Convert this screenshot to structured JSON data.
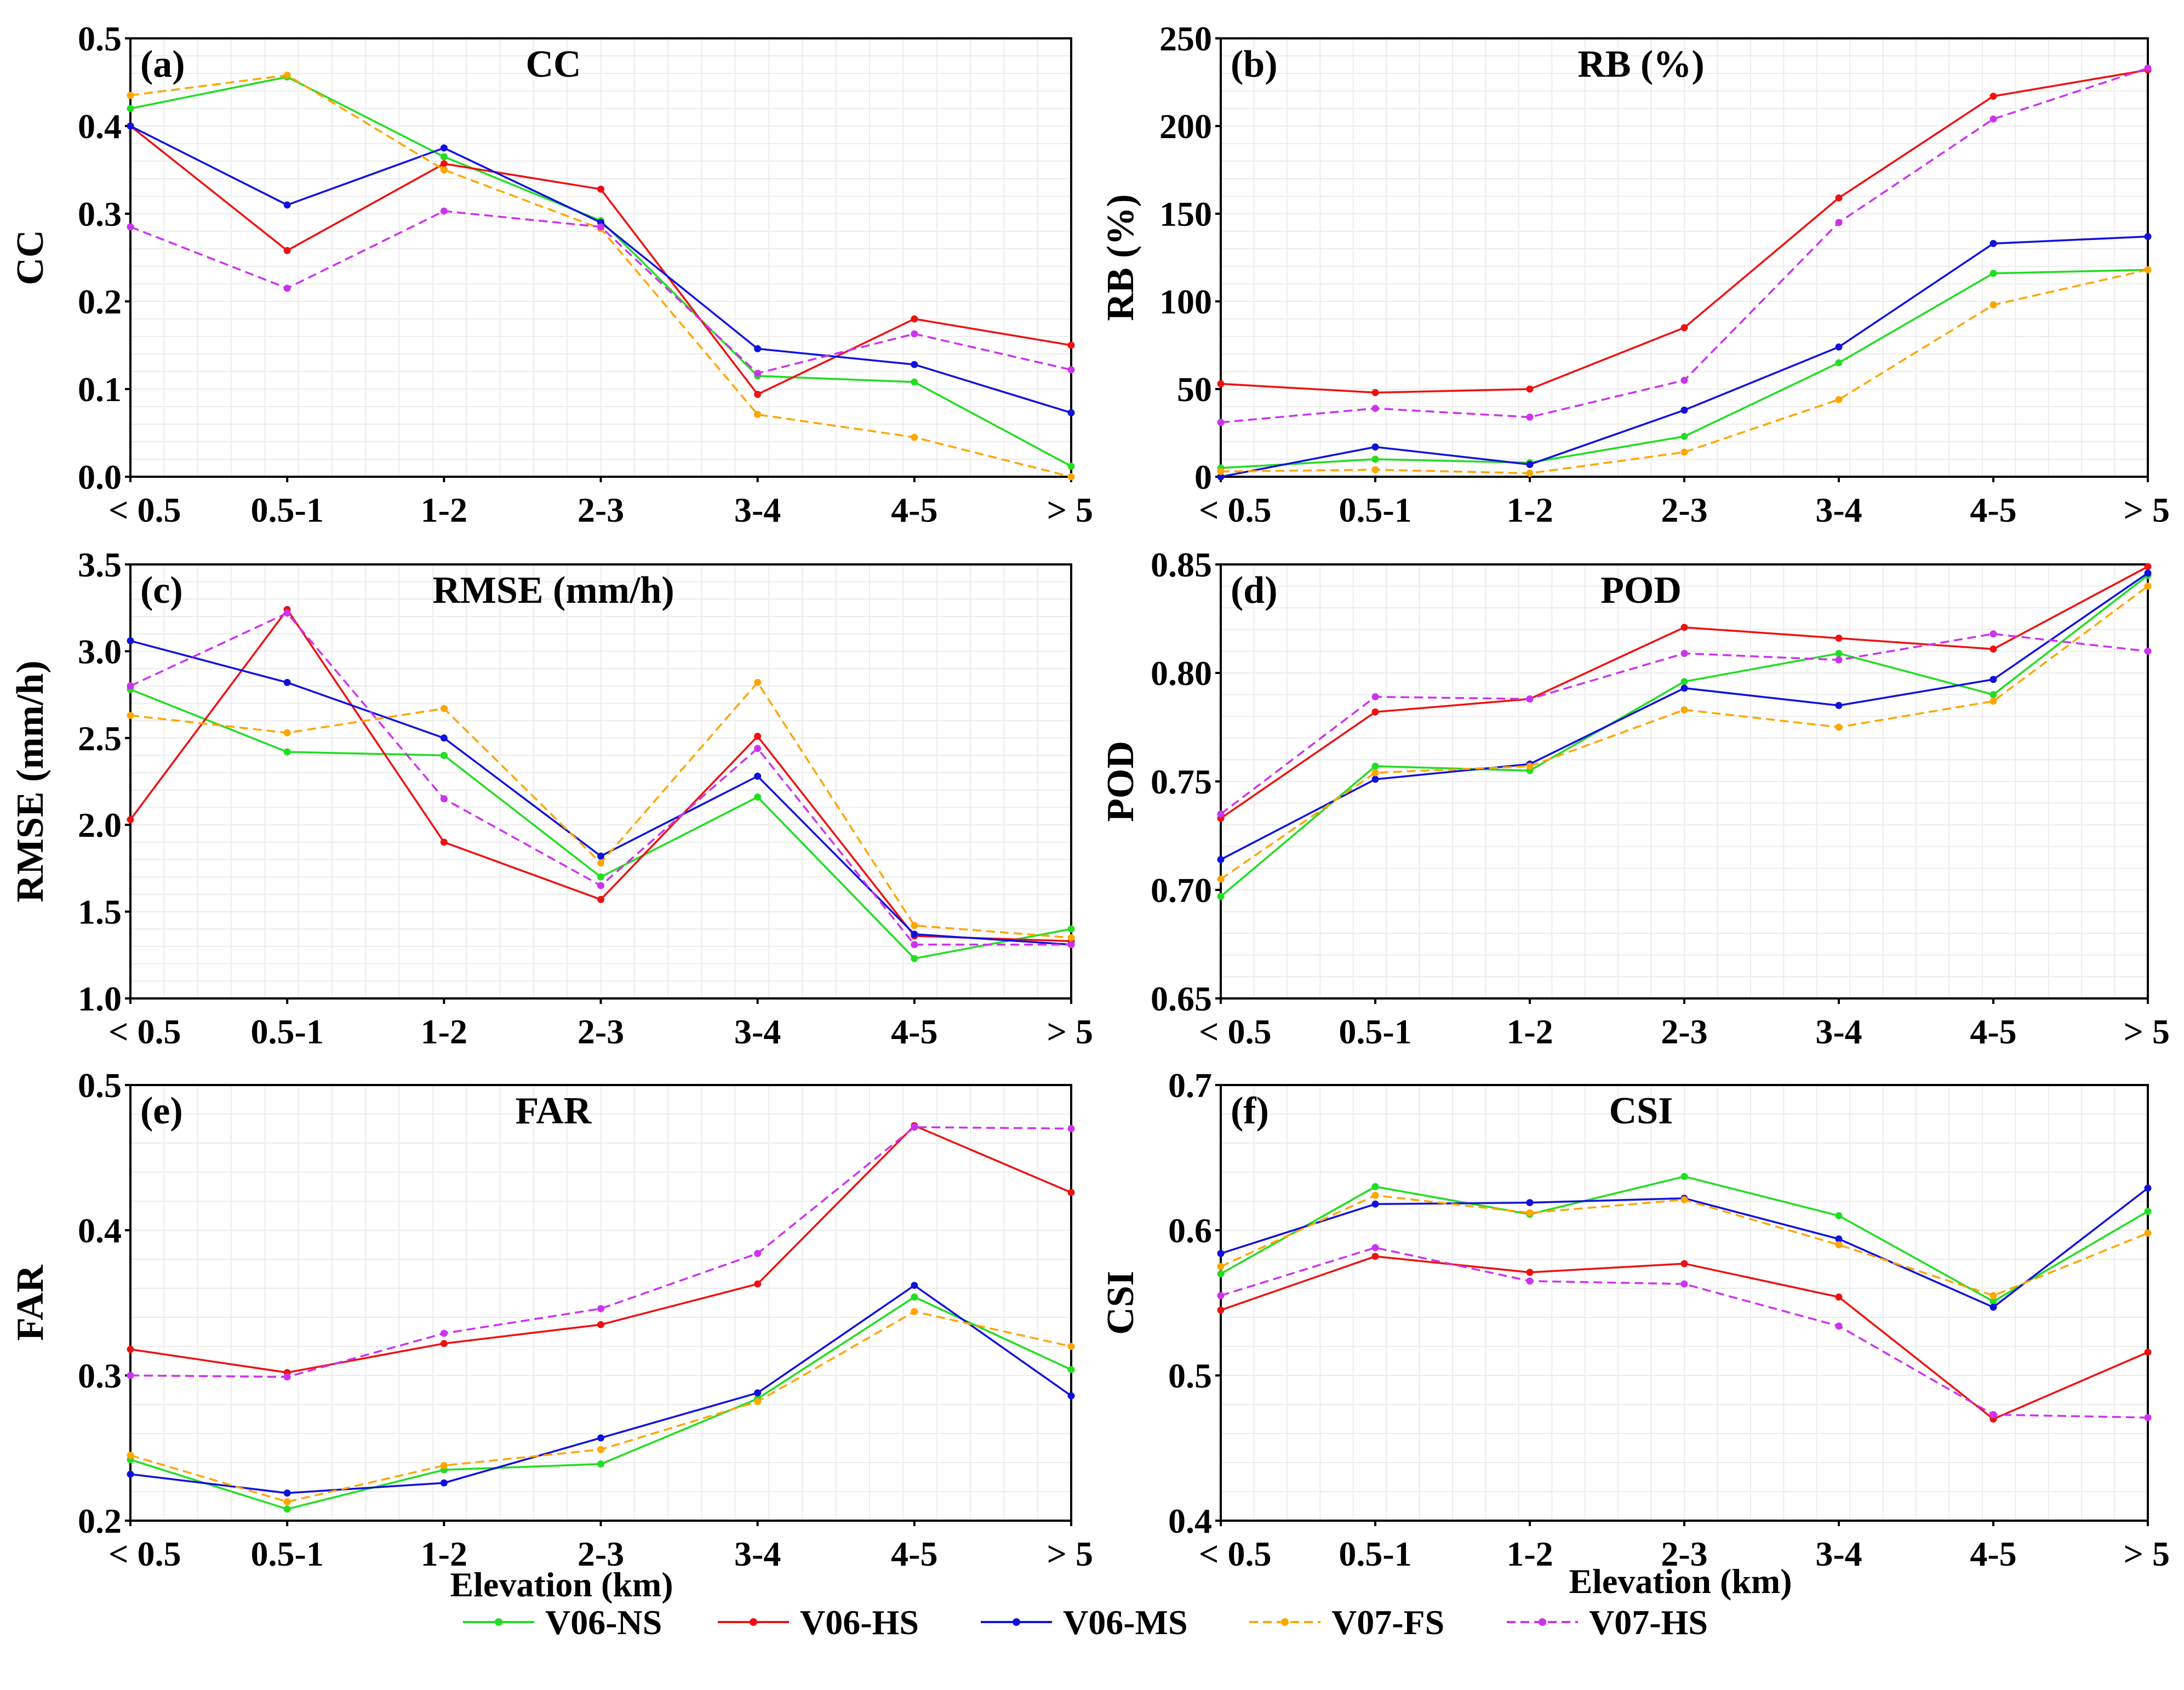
{
  "figure": {
    "legend": [
      {
        "name": "V06-NS",
        "color": "#22dd22",
        "dashed": false
      },
      {
        "name": "V06-HS",
        "color": "#ee1111",
        "dashed": false
      },
      {
        "name": "V06-MS",
        "color": "#1111dd",
        "dashed": false
      },
      {
        "name": "V07-FS",
        "color": "#ffa500",
        "dashed": true
      },
      {
        "name": "V07-HS",
        "color": "#cc33ee",
        "dashed": true
      }
    ],
    "xlabel": "Elevation (km)"
  },
  "chart_data": [
    {
      "type": "line",
      "panel": "(a)",
      "title": "CC",
      "ylabel": "CC",
      "categories": [
        "< 0.5",
        "0.5-1",
        "1-2",
        "2-3",
        "3-4",
        "4-5",
        "> 5"
      ],
      "ylim": [
        0.0,
        0.5
      ],
      "yticks": [
        "0.0",
        "0.1",
        "0.2",
        "0.3",
        "0.4",
        "0.5"
      ],
      "xlabel": "",
      "series": [
        {
          "name": "V06-NS",
          "values": [
            0.42,
            0.456,
            0.365,
            0.292,
            0.115,
            0.108,
            0.012
          ]
        },
        {
          "name": "V06-HS",
          "values": [
            0.4,
            0.258,
            0.357,
            0.328,
            0.094,
            0.18,
            0.15
          ]
        },
        {
          "name": "V06-MS",
          "values": [
            0.4,
            0.31,
            0.375,
            0.29,
            0.146,
            0.128,
            0.073
          ]
        },
        {
          "name": "V07-FS",
          "values": [
            0.435,
            0.458,
            0.35,
            0.283,
            0.071,
            0.045,
            0.0
          ]
        },
        {
          "name": "V07-HS",
          "values": [
            0.285,
            0.215,
            0.303,
            0.285,
            0.118,
            0.163,
            0.122
          ]
        }
      ]
    },
    {
      "type": "line",
      "panel": "(b)",
      "title": "RB (%)",
      "ylabel": "RB (%)",
      "categories": [
        "< 0.5",
        "0.5-1",
        "1-2",
        "2-3",
        "3-4",
        "4-5",
        "> 5"
      ],
      "ylim": [
        0,
        250
      ],
      "yticks": [
        "0",
        "50",
        "100",
        "150",
        "200",
        "250"
      ],
      "xlabel": "",
      "series": [
        {
          "name": "V06-NS",
          "values": [
            5,
            10,
            8,
            23,
            65,
            116,
            118
          ]
        },
        {
          "name": "V06-HS",
          "values": [
            53,
            48,
            50,
            85,
            159,
            217,
            232
          ]
        },
        {
          "name": "V06-MS",
          "values": [
            0,
            17,
            7,
            38,
            74,
            133,
            137
          ]
        },
        {
          "name": "V07-FS",
          "values": [
            3,
            4,
            2,
            14,
            44,
            98,
            118
          ]
        },
        {
          "name": "V07-HS",
          "values": [
            31,
            39,
            34,
            55,
            145,
            204,
            233
          ]
        }
      ]
    },
    {
      "type": "line",
      "panel": "(c)",
      "title": "RMSE (mm/h)",
      "ylabel": "RMSE (mm/h)",
      "categories": [
        "< 0.5",
        "0.5-1",
        "1-2",
        "2-3",
        "3-4",
        "4-5",
        "> 5"
      ],
      "ylim": [
        1.0,
        3.5
      ],
      "yticks": [
        "1.0",
        "1.5",
        "2.0",
        "2.5",
        "3.0",
        "3.5"
      ],
      "xlabel": "",
      "series": [
        {
          "name": "V06-NS",
          "values": [
            2.78,
            2.42,
            2.4,
            1.7,
            2.16,
            1.23,
            1.4
          ]
        },
        {
          "name": "V06-HS",
          "values": [
            2.03,
            3.24,
            1.9,
            1.57,
            2.51,
            1.36,
            1.33
          ]
        },
        {
          "name": "V06-MS",
          "values": [
            3.06,
            2.82,
            2.5,
            1.82,
            2.28,
            1.37,
            1.31
          ]
        },
        {
          "name": "V07-FS",
          "values": [
            2.63,
            2.53,
            2.67,
            1.78,
            2.82,
            1.42,
            1.35
          ]
        },
        {
          "name": "V07-HS",
          "values": [
            2.8,
            3.22,
            2.15,
            1.65,
            2.44,
            1.31,
            1.31
          ]
        }
      ]
    },
    {
      "type": "line",
      "panel": "(d)",
      "title": "POD",
      "ylabel": "POD",
      "categories": [
        "< 0.5",
        "0.5-1",
        "1-2",
        "2-3",
        "3-4",
        "4-5",
        "> 5"
      ],
      "ylim": [
        0.65,
        0.85
      ],
      "yticks": [
        "0.65",
        "0.70",
        "0.75",
        "0.80",
        "0.85"
      ],
      "xlabel": "",
      "series": [
        {
          "name": "V06-NS",
          "values": [
            0.697,
            0.757,
            0.755,
            0.796,
            0.809,
            0.79,
            0.845
          ]
        },
        {
          "name": "V06-HS",
          "values": [
            0.733,
            0.782,
            0.788,
            0.821,
            0.816,
            0.811,
            0.849
          ]
        },
        {
          "name": "V06-MS",
          "values": [
            0.714,
            0.751,
            0.758,
            0.793,
            0.785,
            0.797,
            0.846
          ]
        },
        {
          "name": "V07-FS",
          "values": [
            0.705,
            0.754,
            0.757,
            0.783,
            0.775,
            0.787,
            0.84
          ]
        },
        {
          "name": "V07-HS",
          "values": [
            0.735,
            0.789,
            0.788,
            0.809,
            0.806,
            0.818,
            0.81
          ]
        }
      ]
    },
    {
      "type": "line",
      "panel": "(e)",
      "title": "FAR",
      "ylabel": "FAR",
      "categories": [
        "< 0.5",
        "0.5-1",
        "1-2",
        "2-3",
        "3-4",
        "4-5",
        "> 5"
      ],
      "ylim": [
        0.2,
        0.5
      ],
      "yticks": [
        "0.2",
        "0.3",
        "0.4",
        "0.5"
      ],
      "xlabel": "Elevation (km)",
      "series": [
        {
          "name": "V06-NS",
          "values": [
            0.242,
            0.208,
            0.235,
            0.239,
            0.284,
            0.354,
            0.304
          ]
        },
        {
          "name": "V06-HS",
          "values": [
            0.318,
            0.302,
            0.322,
            0.335,
            0.363,
            0.472,
            0.426
          ]
        },
        {
          "name": "V06-MS",
          "values": [
            0.232,
            0.219,
            0.226,
            0.257,
            0.288,
            0.362,
            0.286
          ]
        },
        {
          "name": "V07-FS",
          "values": [
            0.245,
            0.213,
            0.238,
            0.249,
            0.282,
            0.344,
            0.32
          ]
        },
        {
          "name": "V07-HS",
          "values": [
            0.3,
            0.299,
            0.329,
            0.346,
            0.384,
            0.471,
            0.47
          ]
        }
      ]
    },
    {
      "type": "line",
      "panel": "(f)",
      "title": "CSI",
      "ylabel": "CSI",
      "categories": [
        "< 0.5",
        "0.5-1",
        "1-2",
        "2-3",
        "3-4",
        "4-5",
        "> 5"
      ],
      "ylim": [
        0.4,
        0.7
      ],
      "yticks": [
        "0.4",
        "0.5",
        "0.6",
        "0.7"
      ],
      "xlabel": "Elevation (km)",
      "series": [
        {
          "name": "V06-NS",
          "values": [
            0.57,
            0.63,
            0.611,
            0.637,
            0.61,
            0.551,
            0.613
          ]
        },
        {
          "name": "V06-HS",
          "values": [
            0.545,
            0.582,
            0.571,
            0.577,
            0.554,
            0.47,
            0.516
          ]
        },
        {
          "name": "V06-MS",
          "values": [
            0.584,
            0.618,
            0.619,
            0.622,
            0.594,
            0.547,
            0.629
          ]
        },
        {
          "name": "V07-FS",
          "values": [
            0.575,
            0.624,
            0.612,
            0.621,
            0.59,
            0.555,
            0.598
          ]
        },
        {
          "name": "V07-HS",
          "values": [
            0.555,
            0.588,
            0.565,
            0.563,
            0.534,
            0.473,
            0.471
          ]
        }
      ]
    }
  ]
}
